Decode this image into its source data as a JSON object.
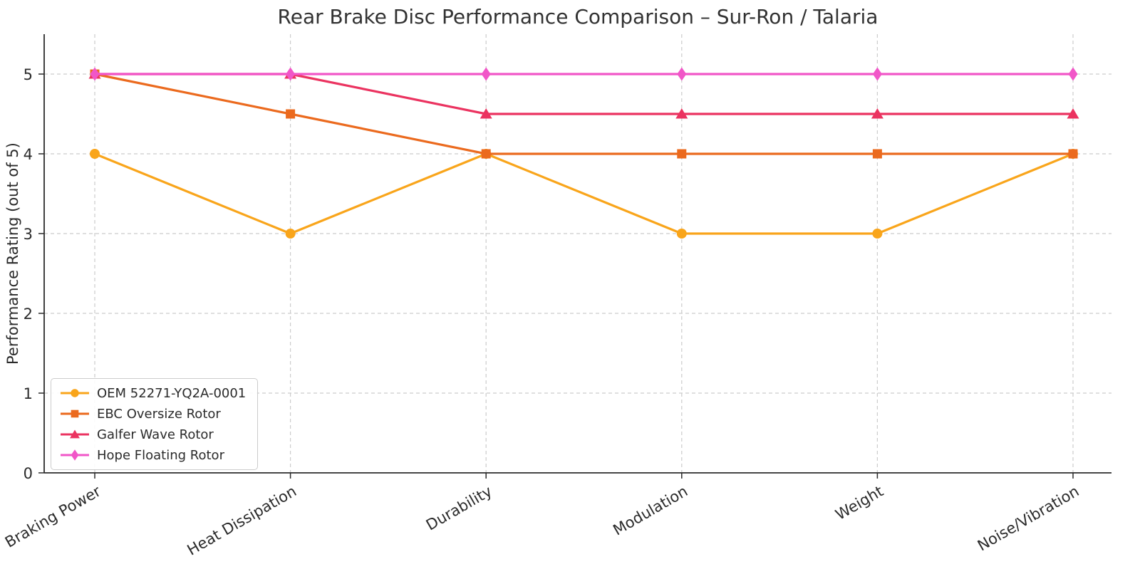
{
  "figure": {
    "title": "Rear Brake Disc Performance Comparison – Sur-Ron / Talaria",
    "ylabel": "Performance Rating (out of 5)"
  },
  "chart_data": {
    "type": "line",
    "title": "Rear Brake Disc Performance Comparison – Sur-Ron / Talaria",
    "xlabel": "",
    "ylabel": "Performance Rating (out of 5)",
    "categories": [
      "Braking Power",
      "Heat Dissipation",
      "Durability",
      "Modulation",
      "Weight",
      "Noise/Vibration"
    ],
    "series": [
      {
        "name": "OEM 52271-YQ2A-0001",
        "marker": "circle",
        "color": "#F9A51B",
        "values": [
          4,
          3,
          4,
          3,
          3,
          4
        ]
      },
      {
        "name": "EBC Oversize Rotor",
        "marker": "square",
        "color": "#EB6A1E",
        "values": [
          5,
          4.5,
          4,
          4,
          4,
          4
        ]
      },
      {
        "name": "Galfer Wave Rotor",
        "marker": "triangle",
        "color": "#EB3360",
        "values": [
          5,
          5,
          4.5,
          4.5,
          4.5,
          4.5
        ]
      },
      {
        "name": "Hope Floating Rotor",
        "marker": "diamond",
        "color": "#F156C8",
        "values": [
          5,
          5,
          5,
          5,
          5,
          5
        ]
      }
    ],
    "yticks": [
      0,
      1,
      2,
      3,
      4,
      5
    ],
    "ylim": [
      0,
      5.5
    ],
    "grid": true,
    "grid_style": "dashed",
    "legend_position": "lower-left",
    "colors": {
      "grid": "#cccccc",
      "axis": "#2b2b2b",
      "title_text": "#323232",
      "tick_text": "#2b2b2b",
      "background": "#ffffff"
    }
  }
}
